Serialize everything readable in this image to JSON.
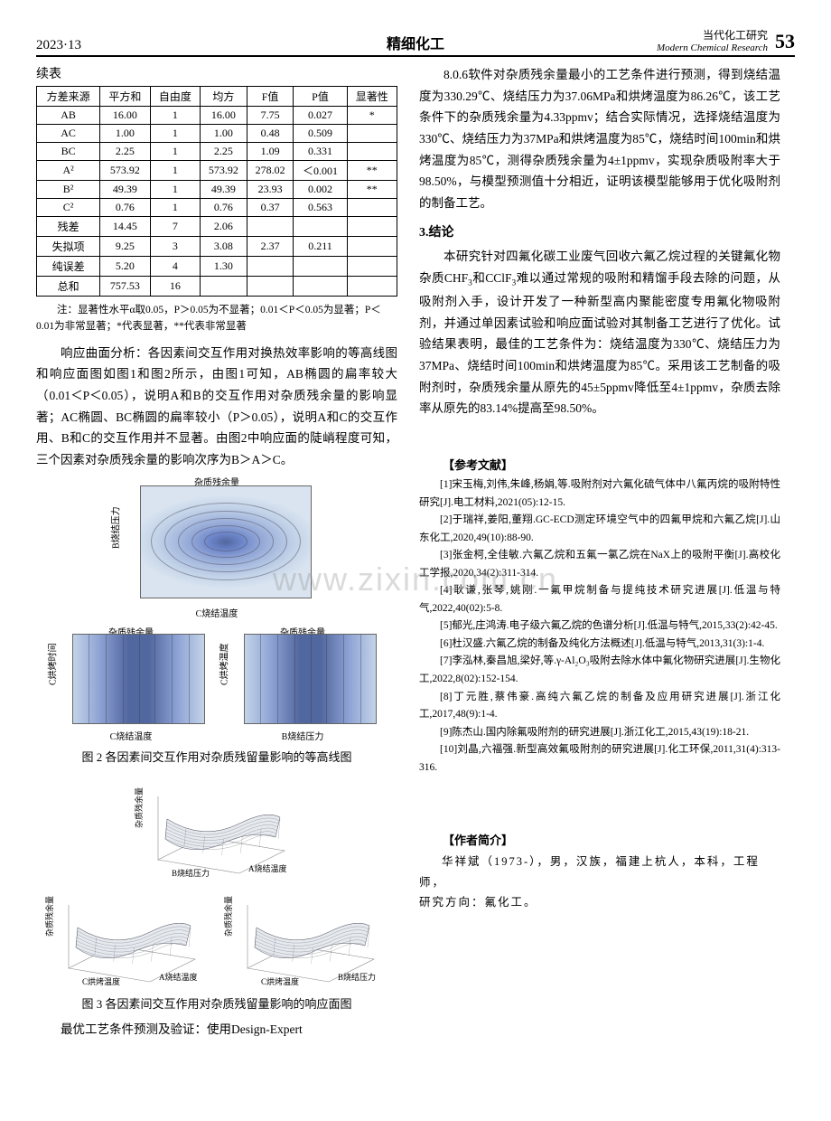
{
  "header": {
    "issue": "2023·13",
    "journal_cn": "精细化工",
    "journal_top_cn": "当代化工研究",
    "journal_en": "Modern Chemical Research",
    "page": "53"
  },
  "continued_label": "续表",
  "table": {
    "columns": [
      "方差来源",
      "平方和",
      "自由度",
      "均方",
      "F值",
      "P值",
      "显著性"
    ],
    "rows": [
      [
        "AB",
        "16.00",
        "1",
        "16.00",
        "7.75",
        "0.027",
        "*"
      ],
      [
        "AC",
        "1.00",
        "1",
        "1.00",
        "0.48",
        "0.509",
        ""
      ],
      [
        "BC",
        "2.25",
        "1",
        "2.25",
        "1.09",
        "0.331",
        ""
      ],
      [
        "A²",
        "573.92",
        "1",
        "573.92",
        "278.02",
        "＜0.001",
        "**"
      ],
      [
        "B²",
        "49.39",
        "1",
        "49.39",
        "23.93",
        "0.002",
        "**"
      ],
      [
        "C²",
        "0.76",
        "1",
        "0.76",
        "0.37",
        "0.563",
        ""
      ],
      [
        "残差",
        "14.45",
        "7",
        "2.06",
        "",
        "",
        ""
      ],
      [
        "失拟项",
        "9.25",
        "3",
        "3.08",
        "2.37",
        "0.211",
        ""
      ],
      [
        "纯误差",
        "5.20",
        "4",
        "1.30",
        "",
        "",
        ""
      ],
      [
        "总和",
        "757.53",
        "16",
        "",
        "",
        "",
        ""
      ]
    ],
    "note": "注：显著性水平α取0.05，P＞0.05为不显著；0.01＜P＜0.05为显著；P＜0.01为非常显著；*代表显著，**代表非常显著"
  },
  "left_paras": {
    "p1": "响应曲面分析：各因素间交互作用对换热效率影响的等高线图和响应面图如图1和图2所示，由图1可知，AB椭圆的扁率较大（0.01＜P＜0.05），说明A和B的交互作用对杂质残余量的影响显著；AC椭圆、BC椭圆的扁率较小（P＞0.05），说明A和C的交互作用、B和C的交互作用并不显著。由图2中响应面的陡峭程度可知，三个因素对杂质残余量的影响次序为B＞A＞C。"
  },
  "fig2": {
    "caption": "图 2  各因素间交互作用对杂质残留量影响的等高线图",
    "title": "杂质残余量",
    "big": {
      "ylabel": "B烧结压力",
      "xlabel": "C烧结温度"
    },
    "small1": {
      "title": "杂质残余量",
      "ylabel": "C烘烤时间",
      "xlabel": "C烧结温度"
    },
    "small2": {
      "title": "杂质残余量",
      "ylabel": "C烘烤温度",
      "xlabel": "B烧结压力"
    },
    "contour_colors": [
      "#d9e4f0",
      "#c3d3e8",
      "#aabde0",
      "#8fa4d5",
      "#6d86ca",
      "#51679f"
    ]
  },
  "fig3": {
    "caption": "图 3  各因素间交互作用对杂质残留量影响的响应面图",
    "zlabel": "杂质残余量",
    "p1": {
      "xlabel": "A烧结温度",
      "ylabel": "B烧结压力"
    },
    "p2": {
      "xlabel": "A烧结温度",
      "ylabel": "C烘烤温度"
    },
    "p3": {
      "xlabel": "B烧结压力",
      "ylabel": "C烘烤温度"
    },
    "surf_light": "#e6e9ee",
    "surf_dark": "#555a66",
    "grid_color": "#888"
  },
  "left_tail": "最优工艺条件预测及验证：使用Design-Expert",
  "right_paras": {
    "p1": "8.0.6软件对杂质残余量最小的工艺条件进行预测，得到烧结温度为330.29℃、烧结压力为37.06MPa和烘烤温度为86.26℃，该工艺条件下的杂质残余量为4.33ppmv；结合实际情况，选择烧结温度为330℃、烧结压力为37MPa和烘烤温度为85℃，烧结时间100min和烘烤温度为85℃，测得杂质残余量为4±1ppmv，实现杂质吸附率大于98.50%，与模型预测值十分相近，证明该模型能够用于优化吸附剂的制备工艺。",
    "sec3": "3.结论",
    "p2_a": "本研究针对四氟化碳工业废气回收六氟乙烷过程的关键氟化物杂质CHF",
    "p2_b": "和CClF",
    "p2_c": "难以通过常规的吸附和精馏手段去除的问题，从吸附剂入手，设计开发了一种新型高内聚能密度专用氟化物吸附剂，并通过单因素试验和响应面试验对其制备工艺进行了优化。试验结果表明，最佳的工艺条件为：烧结温度为330℃、烧结压力为37MPa、烧结时间100min和烘烤温度为85℃。采用该工艺制备的吸附剂时，杂质残余量从原先的45±5ppmv降低至4±1ppmv，杂质去除率从原先的83.14%提高至98.50%。"
  },
  "refs": {
    "head": "【参考文献】",
    "items": [
      "[1]宋玉梅,刘伟,朱峰,杨娟,等.吸附剂对六氟化硫气体中八氟丙烷的吸附特性研究[J].电工材料,2021(05):12-15.",
      "[2]于瑞祥,姜阳,董翔.GC-ECD测定环境空气中的四氟甲烷和六氟乙烷[J].山东化工,2020,49(10):88-90.",
      "[3]张金柯,全佳敏.六氟乙烷和五氟一氯乙烷在NaX上的吸附平衡[J].高校化工学报,2020,34(2):311-314.",
      "[4]耿谦,张琴,姚刚.一氟甲烷制备与提纯技术研究进展[J].低温与特气,2022,40(02):5-8.",
      "[5]郁光,庄鸿涛.电子级六氟乙烷的色谱分析[J].低温与特气,2015,33(2):42-45.",
      "[6]杜汉盛.六氟乙烷的制备及纯化方法概述[J].低温与特气,2013,31(3):1-4.",
      "[7]李泓林,秦昌旭,梁好,等.γ-Al₂O₃吸附去除水体中氟化物研究进展[J].生物化工,2022,8(02):152-154.",
      "[8]丁元胜,蔡伟豪.高纯六氟乙烷的制备及应用研究进展[J].浙江化工,2017,48(9):1-4.",
      "[9]陈杰山.国内除氟吸附剂的研究进展[J].浙江化工,2015,43(19):18-21.",
      "[10]刘晶,六福强.新型高效氟吸附剂的研究进展[J].化工环保,2011,31(4):313-316."
    ]
  },
  "author": {
    "head": "【作者简介】",
    "body1": "华祥斌（1973-），男，汉族，福建上杭人，本科，工程师，",
    "body2": "研究方向：氟化工。"
  },
  "watermark": "www.zixin.com.cn"
}
